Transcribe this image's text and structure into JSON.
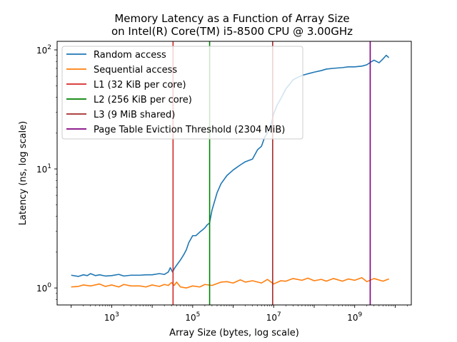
{
  "chart_data": {
    "type": "line",
    "title": "Memory Latency as a Function of Array Size",
    "subtitle": "on Intel(R) Core(TM) i5-8500 CPU @ 3.00GHz",
    "xlabel": "Array Size (bytes, log scale)",
    "ylabel": "Latency (ns, log scale)",
    "xscale": "log",
    "yscale": "log",
    "xlim": [
      45,
      25000000000
    ],
    "ylim": [
      0.72,
      118
    ],
    "xticks": [
      {
        "value": 1000,
        "base": "10",
        "exp": "3"
      },
      {
        "value": 100000,
        "base": "10",
        "exp": "5"
      },
      {
        "value": 10000000,
        "base": "10",
        "exp": "7"
      },
      {
        "value": 1000000000,
        "base": "10",
        "exp": "9"
      }
    ],
    "yticks": [
      {
        "value": 1,
        "base": "10",
        "exp": "0"
      },
      {
        "value": 10,
        "base": "10",
        "exp": "1"
      },
      {
        "value": 100,
        "base": "10",
        "exp": "2"
      }
    ],
    "grid": false,
    "legend_position": "top-left",
    "series": [
      {
        "name": "Random access",
        "color": "#1f77b4",
        "x": [
          100,
          150,
          200,
          250,
          300,
          400,
          500,
          700,
          1000,
          1500,
          2000,
          3000,
          5000,
          7000,
          10000,
          15000,
          20000,
          25000,
          28000,
          32000,
          35000,
          40000,
          50000,
          60000,
          70000,
          80000,
          100000,
          120000,
          150000,
          180000,
          200000,
          230000,
          260000,
          300000,
          400000,
          500000,
          700000,
          1000000,
          1500000,
          2000000,
          3000000,
          4000000,
          5000000,
          6000000,
          7000000,
          8000000,
          9000000,
          10000000,
          12000000,
          15000000,
          20000000,
          30000000,
          40000000,
          50000000,
          70000000,
          100000000,
          150000000,
          200000000,
          300000000,
          500000000,
          700000000,
          1000000000,
          1500000000,
          2000000000,
          2500000000,
          3000000000,
          4000000000,
          5000000000,
          6000000000,
          7000000000
        ],
        "y": [
          1.28,
          1.25,
          1.29,
          1.27,
          1.32,
          1.27,
          1.29,
          1.26,
          1.27,
          1.3,
          1.26,
          1.28,
          1.28,
          1.29,
          1.29,
          1.32,
          1.3,
          1.36,
          1.48,
          1.36,
          1.45,
          1.55,
          1.72,
          1.9,
          2.1,
          2.4,
          2.75,
          2.75,
          2.95,
          3.1,
          3.2,
          3.4,
          3.5,
          4.5,
          6.3,
          7.5,
          8.8,
          9.8,
          10.8,
          11.5,
          12.1,
          14.5,
          15.5,
          18.5,
          20,
          22,
          25,
          29,
          34,
          39,
          47,
          56,
          59,
          61,
          63,
          65,
          67,
          69,
          70,
          71,
          72,
          72,
          73,
          75,
          79,
          82,
          78,
          84,
          90,
          86
        ]
      },
      {
        "name": "Sequential access",
        "color": "#ff7f0e",
        "x": [
          100,
          150,
          200,
          300,
          500,
          700,
          1000,
          1500,
          2000,
          3000,
          5000,
          7000,
          10000,
          15000,
          20000,
          25000,
          30000,
          35000,
          40000,
          50000,
          70000,
          100000,
          150000,
          200000,
          300000,
          500000,
          700000,
          1000000,
          1500000,
          2000000,
          3000000,
          5000000,
          7000000,
          10000000,
          15000000,
          20000000,
          30000000,
          50000000,
          70000000,
          100000000,
          150000000,
          200000000,
          300000000,
          500000000,
          700000000,
          1000000000,
          1500000000,
          2000000000,
          3000000000,
          5000000000,
          7000000000
        ],
        "y": [
          1.02,
          1.03,
          1.06,
          1.04,
          1.08,
          1.03,
          1.06,
          1.02,
          1.07,
          1.04,
          1.04,
          1.02,
          1.06,
          1.03,
          1.07,
          1.05,
          1.11,
          1.05,
          1.12,
          1.02,
          1.0,
          1.04,
          1.02,
          1.07,
          1.05,
          1.12,
          1.13,
          1.1,
          1.17,
          1.12,
          1.15,
          1.1,
          1.18,
          1.08,
          1.15,
          1.14,
          1.2,
          1.16,
          1.21,
          1.15,
          1.18,
          1.14,
          1.2,
          1.14,
          1.19,
          1.16,
          1.22,
          1.13,
          1.2,
          1.14,
          1.19
        ]
      }
    ],
    "vlines": [
      {
        "name": "L1 (32 KiB per core)",
        "x": 32768,
        "color": "#d62728"
      },
      {
        "name": "L2 (256 KiB per core)",
        "x": 262144,
        "color": "#008000"
      },
      {
        "name": "L3 (9 MiB shared)",
        "x": 9437184,
        "color": "#a52a2a"
      },
      {
        "name": "Page Table Eviction Threshold (2304 MiB)",
        "x": 2415919104,
        "color": "#800080"
      }
    ]
  }
}
